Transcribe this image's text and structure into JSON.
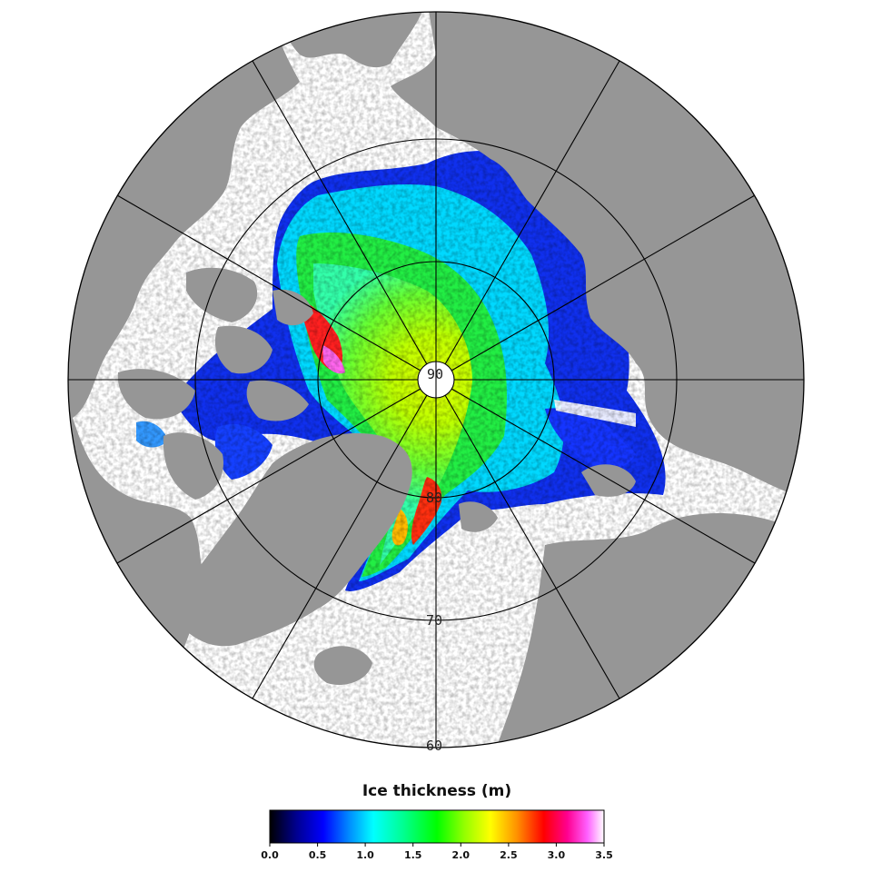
{
  "map": {
    "projection": "north polar stereographic",
    "land_color": "#969696",
    "ocean_color": "#ffffff",
    "graticule_color": "#000000",
    "latitude_labels": [
      "90",
      "80",
      "70",
      "60"
    ]
  },
  "colorbar": {
    "title": "Ice thickness (m)",
    "range": [
      0.0,
      3.5
    ],
    "ticks": [
      "0.0",
      "0.5",
      "1.0",
      "1.5",
      "2.0",
      "2.5",
      "3.0",
      "3.5"
    ],
    "colors": [
      "#000000",
      "#000090",
      "#0000ff",
      "#0090ff",
      "#00ffff",
      "#00ff90",
      "#00ff00",
      "#90ff00",
      "#ffff00",
      "#ff9000",
      "#ff0000",
      "#ff0090",
      "#ff60ff",
      "#ffffff"
    ]
  }
}
